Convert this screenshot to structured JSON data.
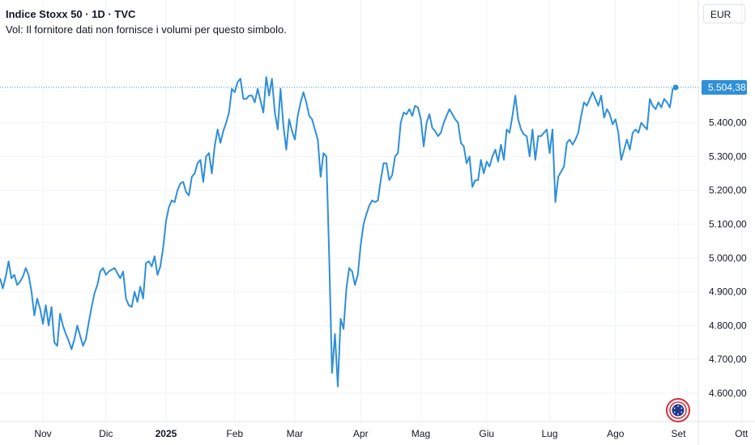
{
  "header": {
    "title": "Indice Stoxx 50 · 1D · TVC",
    "volume_note": "Vol: Il fornitore dati non fornisce i volumi per questo simbolo."
  },
  "currency_button": "EUR",
  "last_price_label": "5.504,38",
  "colors": {
    "line": "#2962ff",
    "series": "#2f8fd8",
    "grid": "#f0f3fa",
    "text": "#131722",
    "price_tag": "#2f8fd8"
  },
  "chart_data": {
    "type": "line",
    "title": "Indice Stoxx 50",
    "xlabel": "",
    "ylabel": "",
    "ylim": [
      4540,
      5620
    ],
    "grid": true,
    "y_ticks": [
      {
        "value": 4600,
        "label": "4.600,00"
      },
      {
        "value": 4700,
        "label": "4.700,00"
      },
      {
        "value": 4800,
        "label": "4.800,00"
      },
      {
        "value": 4900,
        "label": "4.900,00"
      },
      {
        "value": 5000,
        "label": "5.000,00"
      },
      {
        "value": 5100,
        "label": "5.100,00"
      },
      {
        "value": 5200,
        "label": "5.200,00"
      },
      {
        "value": 5300,
        "label": "5.300,00"
      },
      {
        "value": 5400,
        "label": "5.400,00"
      }
    ],
    "x_ticks": [
      {
        "index": 15,
        "label": "Nov"
      },
      {
        "index": 37,
        "label": "Dic"
      },
      {
        "index": 58,
        "label": "2025"
      },
      {
        "index": 82,
        "label": "Feb"
      },
      {
        "index": 103,
        "label": "Mar"
      },
      {
        "index": 126,
        "label": "Apr"
      },
      {
        "index": 147,
        "label": "Mag"
      },
      {
        "index": 170,
        "label": "Giu"
      },
      {
        "index": 192,
        "label": "Lug"
      },
      {
        "index": 215,
        "label": "Ago"
      },
      {
        "index": 237,
        "label": "Set"
      },
      {
        "index": 259,
        "label": "Ott"
      }
    ],
    "last_value": 5504.38,
    "values": [
      4940,
      4910,
      4945,
      4990,
      4940,
      4950,
      4920,
      4930,
      4945,
      4970,
      4950,
      4900,
      4830,
      4880,
      4850,
      4805,
      4860,
      4800,
      4855,
      4750,
      4740,
      4835,
      4800,
      4775,
      4755,
      4730,
      4760,
      4800,
      4770,
      4740,
      4760,
      4810,
      4855,
      4895,
      4920,
      4960,
      4970,
      4950,
      4960,
      4965,
      4970,
      4955,
      4940,
      4960,
      4880,
      4860,
      4855,
      4900,
      4870,
      4915,
      4880,
      4985,
      4990,
      4975,
      5005,
      4950,
      4975,
      5030,
      5110,
      5150,
      5170,
      5165,
      5200,
      5220,
      5225,
      5195,
      5185,
      5240,
      5250,
      5280,
      5290,
      5225,
      5300,
      5310,
      5250,
      5330,
      5380,
      5340,
      5375,
      5400,
      5430,
      5500,
      5490,
      5520,
      5530,
      5470,
      5470,
      5480,
      5480,
      5460,
      5500,
      5465,
      5430,
      5535,
      5480,
      5530,
      5430,
      5380,
      5500,
      5390,
      5320,
      5410,
      5375,
      5350,
      5420,
      5460,
      5490,
      5460,
      5420,
      5410,
      5380,
      5350,
      5240,
      5310,
      5300,
      5000,
      4660,
      4775,
      4620,
      4820,
      4790,
      4910,
      4970,
      4960,
      4920,
      4950,
      5040,
      5100,
      5130,
      5155,
      5170,
      5165,
      5170,
      5230,
      5280,
      5280,
      5230,
      5245,
      5300,
      5310,
      5400,
      5430,
      5425,
      5440,
      5420,
      5450,
      5445,
      5410,
      5330,
      5400,
      5425,
      5385,
      5375,
      5360,
      5370,
      5400,
      5420,
      5440,
      5425,
      5410,
      5400,
      5340,
      5330,
      5280,
      5300,
      5210,
      5230,
      5230,
      5290,
      5250,
      5285,
      5270,
      5300,
      5320,
      5285,
      5335,
      5290,
      5380,
      5370,
      5420,
      5480,
      5410,
      5380,
      5365,
      5360,
      5300,
      5380,
      5290,
      5360,
      5360,
      5370,
      5380,
      5310,
      5380,
      5165,
      5240,
      5255,
      5270,
      5340,
      5350,
      5335,
      5350,
      5370,
      5420,
      5460,
      5450,
      5470,
      5490,
      5470,
      5450,
      5480,
      5415,
      5440,
      5425,
      5395,
      5410,
      5370,
      5290,
      5320,
      5350,
      5320,
      5370,
      5380,
      5370,
      5400,
      5390,
      5380,
      5470,
      5450,
      5440,
      5460,
      5445,
      5470,
      5460,
      5445,
      5500,
      5504.38
    ]
  }
}
